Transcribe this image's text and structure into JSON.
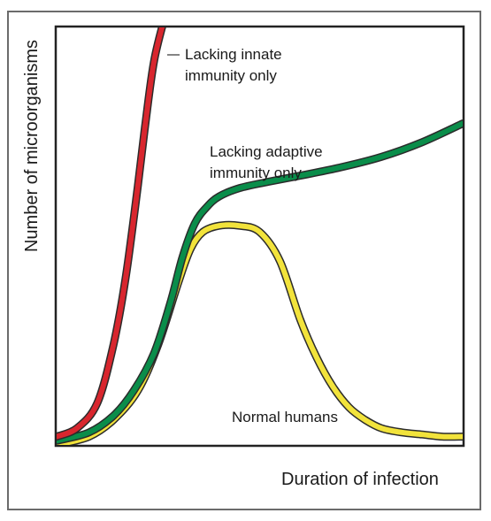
{
  "chart_data": {
    "type": "line",
    "title": "",
    "xlabel": "Duration of infection",
    "ylabel": "Number of microorganisms",
    "xlim": [
      0,
      100
    ],
    "ylim": [
      0,
      100
    ],
    "grid": false,
    "legend": "none",
    "series": [
      {
        "label": "Lacking innate immunity only",
        "color": "#d8262e",
        "x": [
          0,
          5,
          10,
          14,
          17,
          20,
          22,
          24,
          26.5
        ],
        "y": [
          2,
          4,
          10,
          24,
          40,
          62,
          78,
          92,
          102
        ]
      },
      {
        "label": "Lacking adaptive immunity only",
        "color": "#0a8d4a",
        "x": [
          0,
          8,
          14,
          19,
          24,
          28,
          31,
          34,
          37,
          40,
          45,
          52,
          60,
          70,
          80,
          90,
          100
        ],
        "y": [
          1,
          3,
          7,
          13,
          22,
          34,
          45,
          53,
          57,
          59.5,
          61.5,
          63,
          64.5,
          66.5,
          69,
          72.5,
          77
        ]
      },
      {
        "label": "Normal humans",
        "color": "#f2e33b",
        "x": [
          0,
          8,
          14,
          20,
          25,
          30,
          33,
          36,
          40,
          45,
          50,
          55,
          60,
          64,
          68,
          72,
          76,
          80,
          85,
          90,
          95,
          100
        ],
        "y": [
          0,
          2,
          6,
          13,
          24,
          39,
          47,
          51,
          52.5,
          52.5,
          51,
          44,
          30,
          21,
          14,
          9,
          6,
          4,
          3,
          2.5,
          2,
          2
        ]
      }
    ]
  }
}
